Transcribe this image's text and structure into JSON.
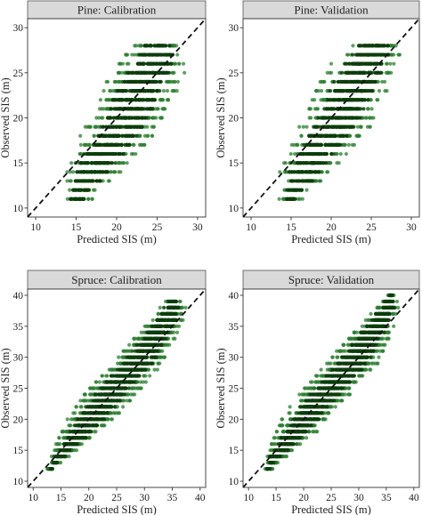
{
  "colors": {
    "point": "#2e7d32",
    "point_dark": "#0b3d0b",
    "strip": "#d9d9d9",
    "ref_line": "#111111"
  },
  "chart_data": [
    {
      "type": "scatter",
      "title": "Pine: Calibration",
      "xlabel": "Predicted SIS (m)",
      "ylabel": "Observed SIS (m)",
      "xlim": [
        9,
        31
      ],
      "ylim": [
        9,
        31
      ],
      "xticks": [
        10,
        15,
        20,
        25,
        30
      ],
      "yticks": [
        10,
        15,
        20,
        25,
        30
      ],
      "observed_levels": [
        11,
        12,
        13,
        14,
        15,
        16,
        17,
        18,
        19,
        20,
        21,
        22,
        23,
        24,
        25,
        26,
        27,
        28
      ],
      "predicted_range_by_level": [
        [
          13.2,
          17.0
        ],
        [
          13.6,
          17.4
        ],
        [
          13.8,
          19.2
        ],
        [
          13.5,
          20.5
        ],
        [
          14.0,
          21.5
        ],
        [
          14.5,
          22.5
        ],
        [
          15.0,
          23.5
        ],
        [
          15.5,
          24.5
        ],
        [
          16.0,
          25.2
        ],
        [
          16.5,
          25.8
        ],
        [
          17.0,
          26.5
        ],
        [
          17.5,
          27.0
        ],
        [
          18.0,
          27.5
        ],
        [
          18.5,
          28.0
        ],
        [
          19.5,
          28.5
        ],
        [
          20.0,
          28.8
        ],
        [
          21.0,
          29.0
        ],
        [
          22.0,
          28.0
        ]
      ],
      "reference_line": "1:1",
      "grid": false
    },
    {
      "type": "scatter",
      "title": "Pine: Validation",
      "xlabel": "Predicted SIS (m)",
      "ylabel": "Observed SIS (m)",
      "xlim": [
        9,
        31
      ],
      "ylim": [
        9,
        31
      ],
      "xticks": [
        10,
        15,
        20,
        25,
        30
      ],
      "yticks": [
        10,
        15,
        20,
        25,
        30
      ],
      "observed_levels": [
        11,
        12,
        13,
        14,
        15,
        16,
        17,
        18,
        19,
        20,
        21,
        22,
        23,
        24,
        25,
        26,
        27,
        28
      ],
      "predicted_range_by_level": [
        [
          13.5,
          16.5
        ],
        [
          13.8,
          17.0
        ],
        [
          14.0,
          19.0
        ],
        [
          13.5,
          20.0
        ],
        [
          14.0,
          21.0
        ],
        [
          14.5,
          22.0
        ],
        [
          15.0,
          23.0
        ],
        [
          15.5,
          24.0
        ],
        [
          16.0,
          25.0
        ],
        [
          16.5,
          25.5
        ],
        [
          17.0,
          26.0
        ],
        [
          17.5,
          26.5
        ],
        [
          18.0,
          27.0
        ],
        [
          18.5,
          27.5
        ],
        [
          19.5,
          28.0
        ],
        [
          20.0,
          28.5
        ],
        [
          21.0,
          29.0
        ],
        [
          22.0,
          28.5
        ]
      ],
      "reference_line": "1:1",
      "grid": false
    },
    {
      "type": "scatter",
      "title": "Spruce: Calibration",
      "xlabel": "Predicted SIS (m)",
      "ylabel": "Observed SIS (m)",
      "xlim": [
        9,
        41
      ],
      "ylim": [
        9,
        41
      ],
      "xticks": [
        10,
        15,
        20,
        25,
        30,
        35,
        40
      ],
      "yticks": [
        10,
        15,
        20,
        25,
        30,
        35,
        40
      ],
      "observed_levels": [
        12,
        13,
        14,
        15,
        16,
        17,
        18,
        19,
        20,
        21,
        22,
        23,
        24,
        25,
        26,
        27,
        28,
        29,
        30,
        31,
        32,
        33,
        34,
        35,
        36,
        37,
        38,
        39
      ],
      "predicted_range_by_level": [
        [
          12.5,
          14.0
        ],
        [
          13.0,
          15.0
        ],
        [
          13.0,
          16.5
        ],
        [
          13.5,
          18.0
        ],
        [
          14.0,
          19.5
        ],
        [
          14.5,
          21.0
        ],
        [
          15.0,
          22.0
        ],
        [
          15.5,
          23.5
        ],
        [
          16.0,
          24.5
        ],
        [
          17.0,
          25.5
        ],
        [
          17.5,
          26.5
        ],
        [
          18.5,
          27.5
        ],
        [
          19.0,
          28.5
        ],
        [
          20.0,
          29.5
        ],
        [
          21.0,
          30.5
        ],
        [
          22.0,
          31.5
        ],
        [
          23.0,
          32.5
        ],
        [
          24.0,
          33.5
        ],
        [
          25.0,
          34.0
        ],
        [
          26.0,
          34.5
        ],
        [
          27.0,
          35.0
        ],
        [
          28.0,
          35.5
        ],
        [
          29.0,
          36.0
        ],
        [
          30.0,
          36.5
        ],
        [
          31.0,
          37.0
        ],
        [
          32.0,
          37.0
        ],
        [
          32.5,
          37.5
        ],
        [
          33.5,
          36.5
        ]
      ],
      "reference_line": "1:1",
      "grid": false
    },
    {
      "type": "scatter",
      "title": "Spruce: Validation",
      "xlabel": "Predicted SIS (m)",
      "ylabel": "Observed SIS (m)",
      "xlim": [
        9,
        41
      ],
      "ylim": [
        9,
        41
      ],
      "xticks": [
        10,
        15,
        20,
        25,
        30,
        35,
        40
      ],
      "yticks": [
        10,
        15,
        20,
        25,
        30,
        35,
        40
      ],
      "observed_levels": [
        12,
        13,
        14,
        15,
        16,
        17,
        18,
        19,
        20,
        21,
        22,
        23,
        24,
        25,
        26,
        27,
        28,
        29,
        30,
        31,
        32,
        33,
        34,
        35,
        36,
        37,
        38,
        39,
        40
      ],
      "predicted_range_by_level": [
        [
          13.0,
          14.5
        ],
        [
          13.0,
          15.5
        ],
        [
          13.0,
          17.0
        ],
        [
          13.5,
          18.5
        ],
        [
          14.0,
          20.0
        ],
        [
          14.5,
          21.0
        ],
        [
          15.0,
          22.5
        ],
        [
          15.5,
          23.5
        ],
        [
          16.0,
          24.5
        ],
        [
          17.0,
          25.5
        ],
        [
          17.5,
          26.5
        ],
        [
          18.5,
          27.5
        ],
        [
          19.0,
          28.5
        ],
        [
          20.0,
          29.5
        ],
        [
          21.0,
          30.5
        ],
        [
          22.0,
          31.5
        ],
        [
          23.0,
          32.5
        ],
        [
          24.0,
          33.5
        ],
        [
          25.0,
          34.0
        ],
        [
          26.0,
          34.5
        ],
        [
          27.0,
          35.0
        ],
        [
          28.0,
          35.5
        ],
        [
          29.0,
          36.0
        ],
        [
          30.0,
          36.5
        ],
        [
          31.0,
          37.0
        ],
        [
          32.0,
          37.0
        ],
        [
          33.0,
          37.5
        ],
        [
          34.0,
          37.0
        ],
        [
          35.0,
          36.5
        ]
      ],
      "reference_line": "1:1",
      "grid": false
    }
  ]
}
